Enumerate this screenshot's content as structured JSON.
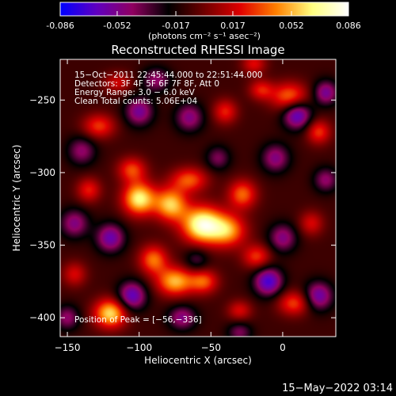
{
  "colorbar": {
    "tick_labels": [
      "-0.086",
      "-0.052",
      "-0.017",
      "0.017",
      "0.052",
      "0.086"
    ],
    "tick_values": [
      -0.086,
      -0.052,
      -0.017,
      0.017,
      0.052,
      0.086
    ],
    "range": [
      -0.086,
      0.086
    ],
    "units_label": "(photons cm⁻² s⁻¹ asec⁻²)",
    "stops": [
      "#0000ff",
      "#6000c0",
      "#900060",
      "#000000",
      "#700000",
      "#e00000",
      "#ff8000",
      "#ffff80",
      "#ffffff"
    ]
  },
  "chart_data": {
    "type": "heatmap",
    "title": "Reconstructed RHESSI Image",
    "xlabel": "Heliocentric X (arcsec)",
    "ylabel": "Heliocentric Y (arcsec)",
    "xlim": [
      -155,
      37
    ],
    "ylim": [
      -413,
      -222
    ],
    "x_ticks": [
      -150,
      -100,
      -50,
      0
    ],
    "y_ticks": [
      -250,
      -300,
      -350,
      -400
    ],
    "x_tick_labels": [
      "−150",
      "−100",
      "−50",
      "0"
    ],
    "y_tick_labels": [
      "−250",
      "−300",
      "−350",
      "−400"
    ],
    "annotations": [
      "15−Oct−2011 22:45:44.000 to 22:51:44.000",
      "Detectors: 3F 4F 5F 6F 7F 8F, Att 0",
      "Energy Range: 3.0 − 6.0 keV",
      "Clean     Total counts: 5.06E+04"
    ],
    "peak_label": "Position of Peak = [−56,−336]",
    "peak_position": [
      -56,
      -336
    ],
    "peak_value": 0.086,
    "sources": [
      {
        "x": -56,
        "y": -336,
        "sx": 10,
        "sy": 9,
        "amp": 0.086
      },
      {
        "x": -78,
        "y": -322,
        "sx": 8,
        "sy": 8,
        "amp": 0.065
      },
      {
        "x": -100,
        "y": -318,
        "sx": 8,
        "sy": 8,
        "amp": 0.075
      },
      {
        "x": -38,
        "y": -340,
        "sx": 9,
        "sy": 8,
        "amp": 0.055
      },
      {
        "x": -65,
        "y": -305,
        "sx": 9,
        "sy": 6,
        "amp": 0.045
      },
      {
        "x": -28,
        "y": -315,
        "sx": 7,
        "sy": 7,
        "amp": 0.048
      },
      {
        "x": -18,
        "y": -358,
        "sx": 7,
        "sy": 6,
        "amp": 0.04
      },
      {
        "x": -90,
        "y": -360,
        "sx": 7,
        "sy": 7,
        "amp": 0.05
      },
      {
        "x": -75,
        "y": -375,
        "sx": 9,
        "sy": 7,
        "amp": 0.062
      },
      {
        "x": -55,
        "y": -375,
        "sx": 7,
        "sy": 6,
        "amp": 0.045
      },
      {
        "x": -120,
        "y": -397,
        "sx": 8,
        "sy": 7,
        "amp": 0.07
      },
      {
        "x": -105,
        "y": -298,
        "sx": 7,
        "sy": 6,
        "amp": 0.042
      },
      {
        "x": -135,
        "y": -312,
        "sx": 6,
        "sy": 6,
        "amp": 0.035
      },
      {
        "x": -128,
        "y": -268,
        "sx": 8,
        "sy": 6,
        "amp": 0.04
      },
      {
        "x": 5,
        "y": -248,
        "sx": 9,
        "sy": 7,
        "amp": 0.052
      },
      {
        "x": 25,
        "y": -272,
        "sx": 6,
        "sy": 6,
        "amp": 0.04
      },
      {
        "x": -15,
        "y": -243,
        "sx": 6,
        "sy": 5,
        "amp": 0.034
      },
      {
        "x": -40,
        "y": -258,
        "sx": 6,
        "sy": 6,
        "amp": 0.036
      },
      {
        "x": 8,
        "y": -390,
        "sx": 8,
        "sy": 6,
        "amp": 0.042
      },
      {
        "x": -30,
        "y": -395,
        "sx": 6,
        "sy": 5,
        "amp": 0.03
      },
      {
        "x": -145,
        "y": -370,
        "sx": 6,
        "sy": 6,
        "amp": 0.03
      },
      {
        "x": 20,
        "y": -335,
        "sx": 6,
        "sy": 6,
        "amp": 0.03
      },
      {
        "x": -20,
        "y": -225,
        "sx": 6,
        "sy": 5,
        "amp": 0.032
      },
      {
        "x": -115,
        "y": -238,
        "sx": 7,
        "sy": 5,
        "amp": 0.028
      },
      {
        "x": -100,
        "y": -258,
        "sx": 7,
        "sy": 7,
        "amp": -0.045
      },
      {
        "x": -88,
        "y": -236,
        "sx": 7,
        "sy": 6,
        "amp": -0.035
      },
      {
        "x": -65,
        "y": -262,
        "sx": 7,
        "sy": 7,
        "amp": -0.04
      },
      {
        "x": 10,
        "y": -260,
        "sx": 7,
        "sy": 7,
        "amp": -0.06
      },
      {
        "x": 30,
        "y": -245,
        "sx": 6,
        "sy": 6,
        "amp": -0.045
      },
      {
        "x": -5,
        "y": -290,
        "sx": 7,
        "sy": 7,
        "amp": -0.04
      },
      {
        "x": -45,
        "y": -290,
        "sx": 6,
        "sy": 6,
        "amp": -0.03
      },
      {
        "x": -140,
        "y": -285,
        "sx": 7,
        "sy": 7,
        "amp": -0.035
      },
      {
        "x": -145,
        "y": -335,
        "sx": 7,
        "sy": 7,
        "amp": -0.04
      },
      {
        "x": -120,
        "y": -345,
        "sx": 7,
        "sy": 7,
        "amp": -0.05
      },
      {
        "x": -105,
        "y": -385,
        "sx": 7,
        "sy": 7,
        "amp": -0.055
      },
      {
        "x": -70,
        "y": -400,
        "sx": 7,
        "sy": 6,
        "amp": -0.04
      },
      {
        "x": -60,
        "y": -360,
        "sx": 6,
        "sy": 6,
        "amp": -0.025
      },
      {
        "x": 0,
        "y": -345,
        "sx": 7,
        "sy": 7,
        "amp": -0.04
      },
      {
        "x": -10,
        "y": -375,
        "sx": 7,
        "sy": 7,
        "amp": -0.06
      },
      {
        "x": 25,
        "y": -385,
        "sx": 7,
        "sy": 7,
        "amp": -0.05
      },
      {
        "x": 30,
        "y": -305,
        "sx": 6,
        "sy": 6,
        "amp": -0.035
      },
      {
        "x": -150,
        "y": -400,
        "sx": 6,
        "sy": 6,
        "amp": -0.035
      },
      {
        "x": -30,
        "y": -410,
        "sx": 6,
        "sy": 5,
        "amp": -0.03
      }
    ],
    "background_level": -0.01
  },
  "footer": {
    "date_label": "15−May−2022 03:14"
  }
}
